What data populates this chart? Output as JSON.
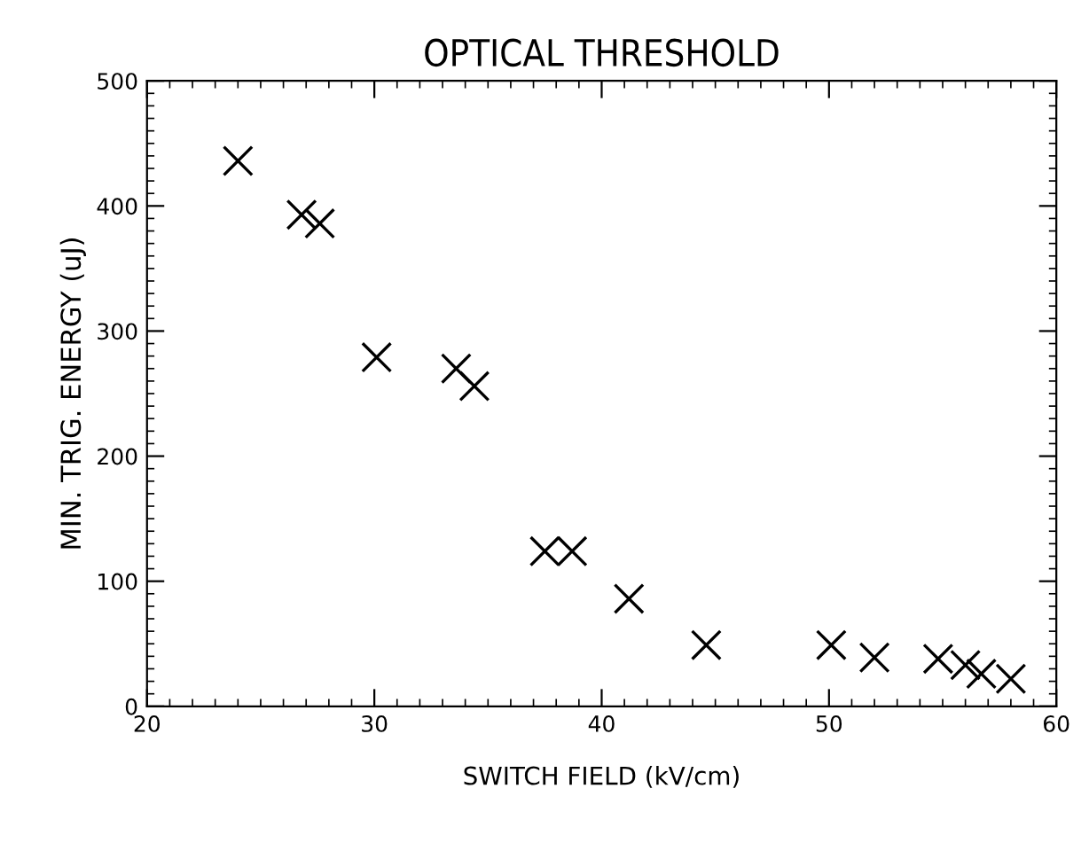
{
  "chart_data": {
    "type": "scatter",
    "title": "OPTICAL THRESHOLD",
    "xlabel": "SWITCH FIELD (kV/cm)",
    "ylabel": "MIN. TRIG. ENERGY (uJ)",
    "x": [
      24,
      26.8,
      27.6,
      30.1,
      33.6,
      34.4,
      37.5,
      38.7,
      41.2,
      44.6,
      50.1,
      52,
      54.8,
      56,
      56.7,
      58
    ],
    "series": [
      {
        "color": "#000000",
        "values": [
          436,
          393,
          386,
          279,
          270,
          256,
          124,
          124,
          86,
          49,
          49,
          39,
          38,
          33,
          26,
          22
        ]
      }
    ],
    "marker": "cross",
    "grid": false,
    "legend": false,
    "xlim": [
      20,
      60
    ],
    "xticks": [
      20,
      30,
      40,
      50,
      60
    ],
    "ylim": [
      0,
      500
    ],
    "yticks": [
      0,
      100,
      200,
      300,
      400,
      500
    ]
  }
}
